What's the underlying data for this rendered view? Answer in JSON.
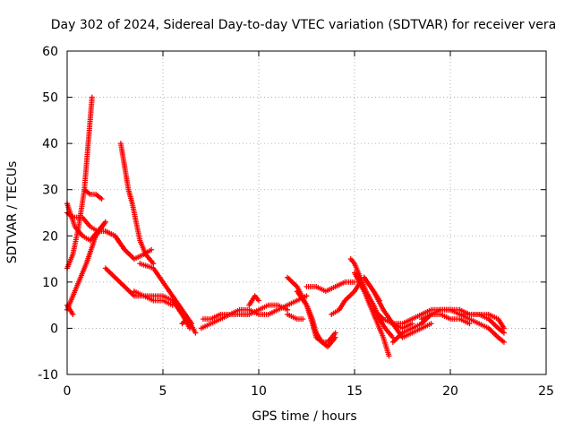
{
  "chart_data": {
    "type": "scatter",
    "title": "Day 302 of 2024, Sidereal Day-to-day VTEC variation (SDTVAR) for receiver vera",
    "xlabel": "GPS time / hours",
    "ylabel": "SDTVAR / TECUs",
    "xlim": [
      0,
      25
    ],
    "ylim": [
      -10,
      60
    ],
    "xticks": [
      0,
      5,
      10,
      15,
      20,
      25
    ],
    "yticks": [
      -10,
      0,
      10,
      20,
      30,
      40,
      50,
      60
    ],
    "grid": true,
    "marker": "+",
    "color": "#ff0000",
    "series": [
      {
        "name": "s1",
        "x": [
          0.0,
          0.3,
          0.6,
          0.9,
          1.1,
          1.3
        ],
        "y": [
          13,
          16,
          22,
          30,
          40,
          50
        ]
      },
      {
        "name": "s2",
        "x": [
          0.9,
          1.2,
          1.5,
          1.8
        ],
        "y": [
          30,
          29,
          29,
          28
        ]
      },
      {
        "name": "s3",
        "x": [
          0.0,
          0.3,
          0.8,
          1.2,
          1.6,
          2.0,
          2.5,
          3.0
        ],
        "y": [
          25,
          24,
          24,
          22,
          21,
          21,
          20,
          17
        ]
      },
      {
        "name": "s4",
        "x": [
          0.0,
          0.4,
          0.8,
          1.2,
          1.6,
          2.0
        ],
        "y": [
          27,
          22,
          20,
          19,
          21,
          23
        ]
      },
      {
        "name": "s5",
        "x": [
          0.0,
          0.3,
          0.6,
          1.0,
          1.5,
          2.0
        ],
        "y": [
          4,
          7,
          10,
          14,
          20,
          23
        ]
      },
      {
        "name": "s6",
        "x": [
          0.0,
          0.3
        ],
        "y": [
          5,
          3
        ]
      },
      {
        "name": "s7",
        "x": [
          2.8,
          3.0,
          3.2,
          3.4,
          3.6,
          3.8,
          4.1,
          4.5
        ],
        "y": [
          40,
          35,
          30,
          27,
          23,
          19,
          16,
          14
        ]
      },
      {
        "name": "s8",
        "x": [
          2.0,
          2.5,
          3.0,
          3.5,
          4.0,
          4.4
        ],
        "y": [
          21,
          20,
          17,
          15,
          16,
          17
        ]
      },
      {
        "name": "s9",
        "x": [
          2.0,
          2.5,
          3.0,
          3.5,
          4.0,
          4.5,
          5.0,
          5.5
        ],
        "y": [
          13,
          11,
          9,
          7,
          7,
          6,
          6,
          5
        ]
      },
      {
        "name": "s10",
        "x": [
          3.8,
          4.5,
          5.0,
          5.5,
          6.0,
          6.5
        ],
        "y": [
          14,
          13,
          10,
          7,
          4,
          1
        ]
      },
      {
        "name": "s11",
        "x": [
          3.5,
          4.0,
          4.5,
          5.0,
          5.5,
          6.0,
          6.4
        ],
        "y": [
          8,
          7,
          7,
          7,
          6,
          3,
          0
        ]
      },
      {
        "name": "s12",
        "x": [
          6.0,
          6.3,
          6.7
        ],
        "y": [
          1,
          2,
          -1
        ]
      },
      {
        "name": "s13",
        "x": [
          7.1,
          7.5,
          8.0,
          8.5,
          9.0,
          9.5,
          10.0,
          10.5,
          11.0,
          11.5,
          12.0,
          12.5
        ],
        "y": [
          2,
          2,
          3,
          3,
          4,
          4,
          3,
          3,
          4,
          5,
          6,
          7
        ]
      },
      {
        "name": "s14",
        "x": [
          7.0,
          7.5,
          8.0,
          8.5,
          9.0,
          9.5,
          10.0,
          10.5,
          11.0,
          11.5
        ],
        "y": [
          0,
          1,
          2,
          3,
          3,
          3,
          4,
          5,
          5,
          4
        ]
      },
      {
        "name": "s15",
        "x": [
          9.5,
          9.8,
          10.0
        ],
        "y": [
          5,
          7,
          6
        ]
      },
      {
        "name": "s16",
        "x": [
          11.5,
          12.0,
          12.3
        ],
        "y": [
          3,
          2,
          2
        ]
      },
      {
        "name": "s17",
        "x": [
          11.5,
          12.0,
          12.5,
          12.8,
          13.0,
          13.3,
          13.6,
          14.0
        ],
        "y": [
          11,
          9,
          5,
          2,
          -1,
          -3,
          -4,
          -2
        ]
      },
      {
        "name": "s18",
        "x": [
          12.0,
          12.5,
          12.8,
          13.0,
          13.3,
          13.6,
          14.0
        ],
        "y": [
          8,
          5,
          1,
          -2,
          -3,
          -3,
          -1
        ]
      },
      {
        "name": "s19",
        "x": [
          12.5,
          13.0,
          13.5,
          14.0,
          14.5,
          15.0
        ],
        "y": [
          9,
          9,
          8,
          9,
          10,
          10
        ]
      },
      {
        "name": "s20",
        "x": [
          13.8,
          14.2,
          14.5,
          15.0,
          15.3
        ],
        "y": [
          3,
          4,
          6,
          8,
          10
        ]
      },
      {
        "name": "s21",
        "x": [
          14.8,
          15.0,
          15.3,
          15.6,
          16.0,
          16.3,
          16.6,
          17.0
        ],
        "y": [
          15,
          14,
          11,
          8,
          5,
          2,
          0,
          -2
        ]
      },
      {
        "name": "s22",
        "x": [
          15.0,
          15.5,
          16.0,
          16.5,
          16.8
        ],
        "y": [
          12,
          8,
          3,
          -2,
          -6
        ]
      },
      {
        "name": "s23",
        "x": [
          15.5,
          16.0,
          16.5,
          17.0,
          17.5,
          18.0
        ],
        "y": [
          11,
          8,
          4,
          1,
          0,
          1
        ]
      },
      {
        "name": "s24",
        "x": [
          15.5,
          16.0,
          16.3
        ],
        "y": [
          11,
          8,
          6
        ]
      },
      {
        "name": "s25",
        "x": [
          16.0,
          16.5,
          17.0,
          17.5,
          18.0,
          18.5,
          19.0,
          19.5,
          20.0,
          20.5,
          21.0,
          21.5,
          22.0,
          22.5,
          22.8
        ],
        "y": [
          4,
          2,
          1,
          1,
          2,
          3,
          4,
          4,
          4,
          3,
          3,
          3,
          3,
          2,
          0
        ]
      },
      {
        "name": "s26",
        "x": [
          17.0,
          17.5,
          18.0,
          18.5,
          19.0,
          19.5,
          20.0,
          20.5,
          21.0,
          21.5,
          22.0,
          22.5,
          22.8
        ],
        "y": [
          -3,
          -1,
          0,
          1,
          3,
          4,
          4,
          4,
          3,
          3,
          2,
          0,
          -1
        ]
      },
      {
        "name": "s27",
        "x": [
          18.5,
          19.0,
          19.5,
          20.0,
          20.5,
          21.0
        ],
        "y": [
          2,
          3,
          3,
          2,
          2,
          1
        ]
      },
      {
        "name": "s28",
        "x": [
          20.5,
          21.0,
          21.5,
          22.0,
          22.5,
          22.8
        ],
        "y": [
          3,
          2,
          1,
          0,
          -2,
          -3
        ]
      },
      {
        "name": "s29",
        "x": [
          17.0,
          17.5,
          18.0,
          18.5,
          19.0
        ],
        "y": [
          1,
          -2,
          -1,
          0,
          1
        ]
      }
    ]
  }
}
